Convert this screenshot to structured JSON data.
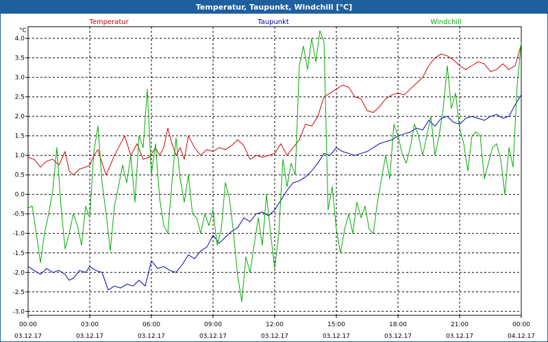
{
  "window": {
    "title": "Temperatur, Taupunkt, Windchill [°C]"
  },
  "chart_data": {
    "type": "line",
    "title": "Temperatur, Taupunkt, Windchill [°C]",
    "ylabel": "°C",
    "xlabel": "",
    "ylim": [
      -3.1,
      4.3
    ],
    "xlim": [
      0,
      24
    ],
    "yticks": [
      "-3.0",
      "-2.5",
      "-2.0",
      "-1.5",
      "-1.0",
      "-0.5",
      "0.0",
      "0.5",
      "1.0",
      "1.5",
      "2.0",
      "2.5",
      "3.0",
      "3.5",
      "4.0"
    ],
    "xticks": [
      {
        "time": "00:00",
        "date": "03.12.17"
      },
      {
        "time": "03:00",
        "date": "03.12.17"
      },
      {
        "time": "06:00",
        "date": "03.12.17"
      },
      {
        "time": "09:00",
        "date": "03.12.17"
      },
      {
        "time": "12:00",
        "date": "03.12.17"
      },
      {
        "time": "15:00",
        "date": "03.12.17"
      },
      {
        "time": "18:00",
        "date": "03.12.17"
      },
      {
        "time": "21:00",
        "date": "03.12.17"
      },
      {
        "time": "00:00",
        "date": "04.12.17"
      }
    ],
    "grid": true,
    "series": [
      {
        "name": "Temperatur",
        "color": "#cc0000",
        "x": [
          0,
          0.3,
          0.6,
          0.9,
          1.2,
          1.5,
          1.8,
          2.0,
          2.2,
          2.5,
          2.8,
          3.0,
          3.2,
          3.4,
          3.6,
          3.8,
          4.0,
          4.2,
          4.4,
          4.7,
          5.0,
          5.3,
          5.6,
          5.9,
          6.2,
          6.4,
          6.6,
          6.8,
          7.0,
          7.2,
          7.4,
          7.6,
          7.8,
          8.1,
          8.4,
          8.7,
          9.0,
          9.3,
          9.6,
          9.9,
          10.2,
          10.5,
          10.8,
          11.1,
          11.4,
          11.7,
          12.0,
          12.3,
          12.6,
          12.9,
          13.2,
          13.5,
          13.8,
          14.1,
          14.4,
          14.7,
          15.0,
          15.3,
          15.6,
          15.9,
          16.2,
          16.5,
          16.8,
          17.1,
          17.4,
          17.7,
          18.0,
          18.3,
          18.6,
          18.9,
          19.2,
          19.5,
          19.8,
          20.1,
          20.4,
          20.7,
          21.0,
          21.3,
          21.6,
          21.9,
          22.2,
          22.5,
          22.8,
          23.1,
          23.4,
          23.7,
          24.0
        ],
        "values": [
          0.95,
          0.9,
          0.7,
          0.85,
          0.9,
          0.75,
          1.1,
          0.6,
          0.5,
          0.65,
          0.7,
          0.75,
          1.0,
          1.15,
          0.8,
          0.5,
          0.75,
          1.0,
          1.2,
          1.5,
          1.0,
          1.3,
          0.9,
          0.95,
          1.2,
          1.0,
          1.2,
          1.7,
          1.3,
          1.0,
          1.2,
          0.9,
          1.5,
          1.2,
          1.0,
          1.15,
          1.1,
          1.2,
          1.15,
          1.25,
          1.4,
          1.25,
          0.9,
          1.0,
          0.95,
          1.0,
          1.05,
          1.3,
          1.0,
          1.2,
          1.4,
          1.8,
          1.75,
          2.0,
          2.5,
          2.6,
          2.7,
          2.8,
          2.75,
          2.5,
          2.45,
          2.15,
          2.1,
          2.25,
          2.45,
          2.55,
          2.6,
          2.55,
          2.7,
          2.85,
          3.0,
          3.3,
          3.5,
          3.6,
          3.55,
          3.45,
          3.3,
          3.2,
          3.3,
          3.4,
          3.35,
          3.15,
          3.2,
          3.35,
          3.2,
          3.3,
          3.85
        ]
      },
      {
        "name": "Taupunkt",
        "color": "#0000aa",
        "x": [
          0,
          0.3,
          0.6,
          0.9,
          1.2,
          1.5,
          1.8,
          2.0,
          2.2,
          2.5,
          2.8,
          3.0,
          3.3,
          3.6,
          3.9,
          4.2,
          4.5,
          4.8,
          5.1,
          5.4,
          5.7,
          6.0,
          6.3,
          6.6,
          6.9,
          7.2,
          7.5,
          7.8,
          8.1,
          8.4,
          8.7,
          9.0,
          9.3,
          9.6,
          9.9,
          10.2,
          10.5,
          10.8,
          11.1,
          11.4,
          11.7,
          12.0,
          12.3,
          12.6,
          12.9,
          13.2,
          13.5,
          13.8,
          14.1,
          14.4,
          14.7,
          15.0,
          15.3,
          15.6,
          15.9,
          16.2,
          16.5,
          16.8,
          17.1,
          17.4,
          17.7,
          18.0,
          18.3,
          18.6,
          18.9,
          19.2,
          19.5,
          19.8,
          20.1,
          20.4,
          20.7,
          21.0,
          21.3,
          21.6,
          21.9,
          22.2,
          22.5,
          22.8,
          23.1,
          23.4,
          23.7,
          24.0
        ],
        "values": [
          -1.85,
          -1.95,
          -2.05,
          -1.9,
          -2.0,
          -1.95,
          -2.05,
          -2.2,
          -2.15,
          -1.95,
          -2.0,
          -1.85,
          -1.95,
          -2.0,
          -2.45,
          -2.35,
          -2.4,
          -2.3,
          -2.35,
          -2.2,
          -2.35,
          -1.7,
          -1.9,
          -1.85,
          -1.95,
          -2.0,
          -1.8,
          -1.55,
          -1.65,
          -1.45,
          -1.35,
          -1.05,
          -1.25,
          -1.1,
          -0.95,
          -0.85,
          -0.6,
          -0.7,
          -0.5,
          -0.45,
          -0.55,
          -0.4,
          -0.15,
          0.1,
          0.3,
          0.35,
          0.45,
          0.6,
          0.8,
          1.05,
          1.0,
          1.2,
          1.1,
          1.05,
          1.0,
          1.05,
          1.1,
          1.2,
          1.3,
          1.35,
          1.4,
          1.5,
          1.55,
          1.6,
          1.7,
          1.65,
          1.9,
          1.75,
          1.95,
          2.0,
          1.85,
          1.8,
          1.95,
          2.0,
          1.95,
          1.9,
          2.0,
          2.05,
          1.95,
          2.0,
          2.3,
          2.55
        ]
      },
      {
        "name": "Windchill",
        "color": "#00aa00",
        "x": [
          0,
          0.2,
          0.4,
          0.6,
          0.8,
          1.0,
          1.2,
          1.4,
          1.6,
          1.8,
          2.0,
          2.2,
          2.4,
          2.6,
          2.8,
          3.0,
          3.2,
          3.4,
          3.6,
          3.8,
          4.0,
          4.2,
          4.4,
          4.6,
          4.8,
          5.0,
          5.2,
          5.4,
          5.6,
          5.8,
          6.0,
          6.2,
          6.4,
          6.6,
          6.8,
          7.0,
          7.2,
          7.4,
          7.6,
          7.8,
          8.0,
          8.2,
          8.4,
          8.6,
          8.8,
          9.0,
          9.2,
          9.4,
          9.6,
          9.8,
          10.0,
          10.2,
          10.4,
          10.6,
          10.8,
          11.0,
          11.2,
          11.4,
          11.6,
          11.8,
          12.0,
          12.2,
          12.4,
          12.6,
          12.8,
          13.0,
          13.2,
          13.4,
          13.6,
          13.8,
          14.0,
          14.2,
          14.4,
          14.6,
          14.8,
          15.0,
          15.2,
          15.4,
          15.6,
          15.8,
          16.0,
          16.2,
          16.4,
          16.6,
          16.8,
          17.0,
          17.2,
          17.4,
          17.6,
          17.8,
          18.0,
          18.2,
          18.4,
          18.6,
          18.8,
          19.0,
          19.2,
          19.4,
          19.6,
          19.8,
          20.0,
          20.2,
          20.4,
          20.6,
          20.8,
          21.0,
          21.2,
          21.4,
          21.6,
          21.8,
          22.0,
          22.2,
          22.4,
          22.6,
          22.8,
          23.0,
          23.2,
          23.4,
          23.6,
          23.8,
          24.0
        ],
        "values": [
          -0.35,
          -0.3,
          -1.0,
          -1.75,
          -1.0,
          -0.5,
          0.1,
          1.2,
          -0.3,
          -1.4,
          -1.0,
          -0.5,
          -0.8,
          -1.3,
          -0.3,
          -0.6,
          1.1,
          1.75,
          0.3,
          -0.5,
          -1.45,
          -0.3,
          0.2,
          0.75,
          0.3,
          1.0,
          -0.2,
          1.5,
          1.2,
          2.7,
          0.5,
          1.3,
          -0.1,
          -0.8,
          -1.0,
          0.3,
          1.45,
          0.4,
          -0.2,
          0.5,
          -0.5,
          -0.6,
          -1.0,
          -0.5,
          -0.8,
          -0.4,
          -1.3,
          -0.9,
          0.3,
          -0.1,
          -1.0,
          -2.1,
          -2.75,
          -1.6,
          -2.0,
          -1.3,
          -0.6,
          -1.3,
          0.0,
          -1.0,
          -1.9,
          -1.0,
          0.9,
          0.2,
          0.8,
          0.5,
          3.3,
          3.8,
          3.2,
          4.0,
          3.4,
          4.2,
          3.9,
          -0.4,
          0.2,
          -0.9,
          -1.5,
          -0.9,
          -0.5,
          -1.0,
          -0.2,
          -0.6,
          -0.3,
          -0.9,
          -1.0,
          -0.2,
          0.4,
          1.0,
          0.4,
          1.8,
          1.5,
          1.05,
          0.8,
          1.2,
          1.8,
          1.5,
          1.0,
          1.5,
          2.0,
          1.0,
          1.5,
          2.2,
          3.3,
          2.2,
          2.6,
          1.7,
          1.3,
          0.6,
          1.5,
          1.6,
          1.5,
          0.4,
          0.8,
          1.2,
          1.3,
          0.9,
          0.0,
          1.2,
          0.7,
          2.8,
          3.9
        ]
      }
    ]
  }
}
